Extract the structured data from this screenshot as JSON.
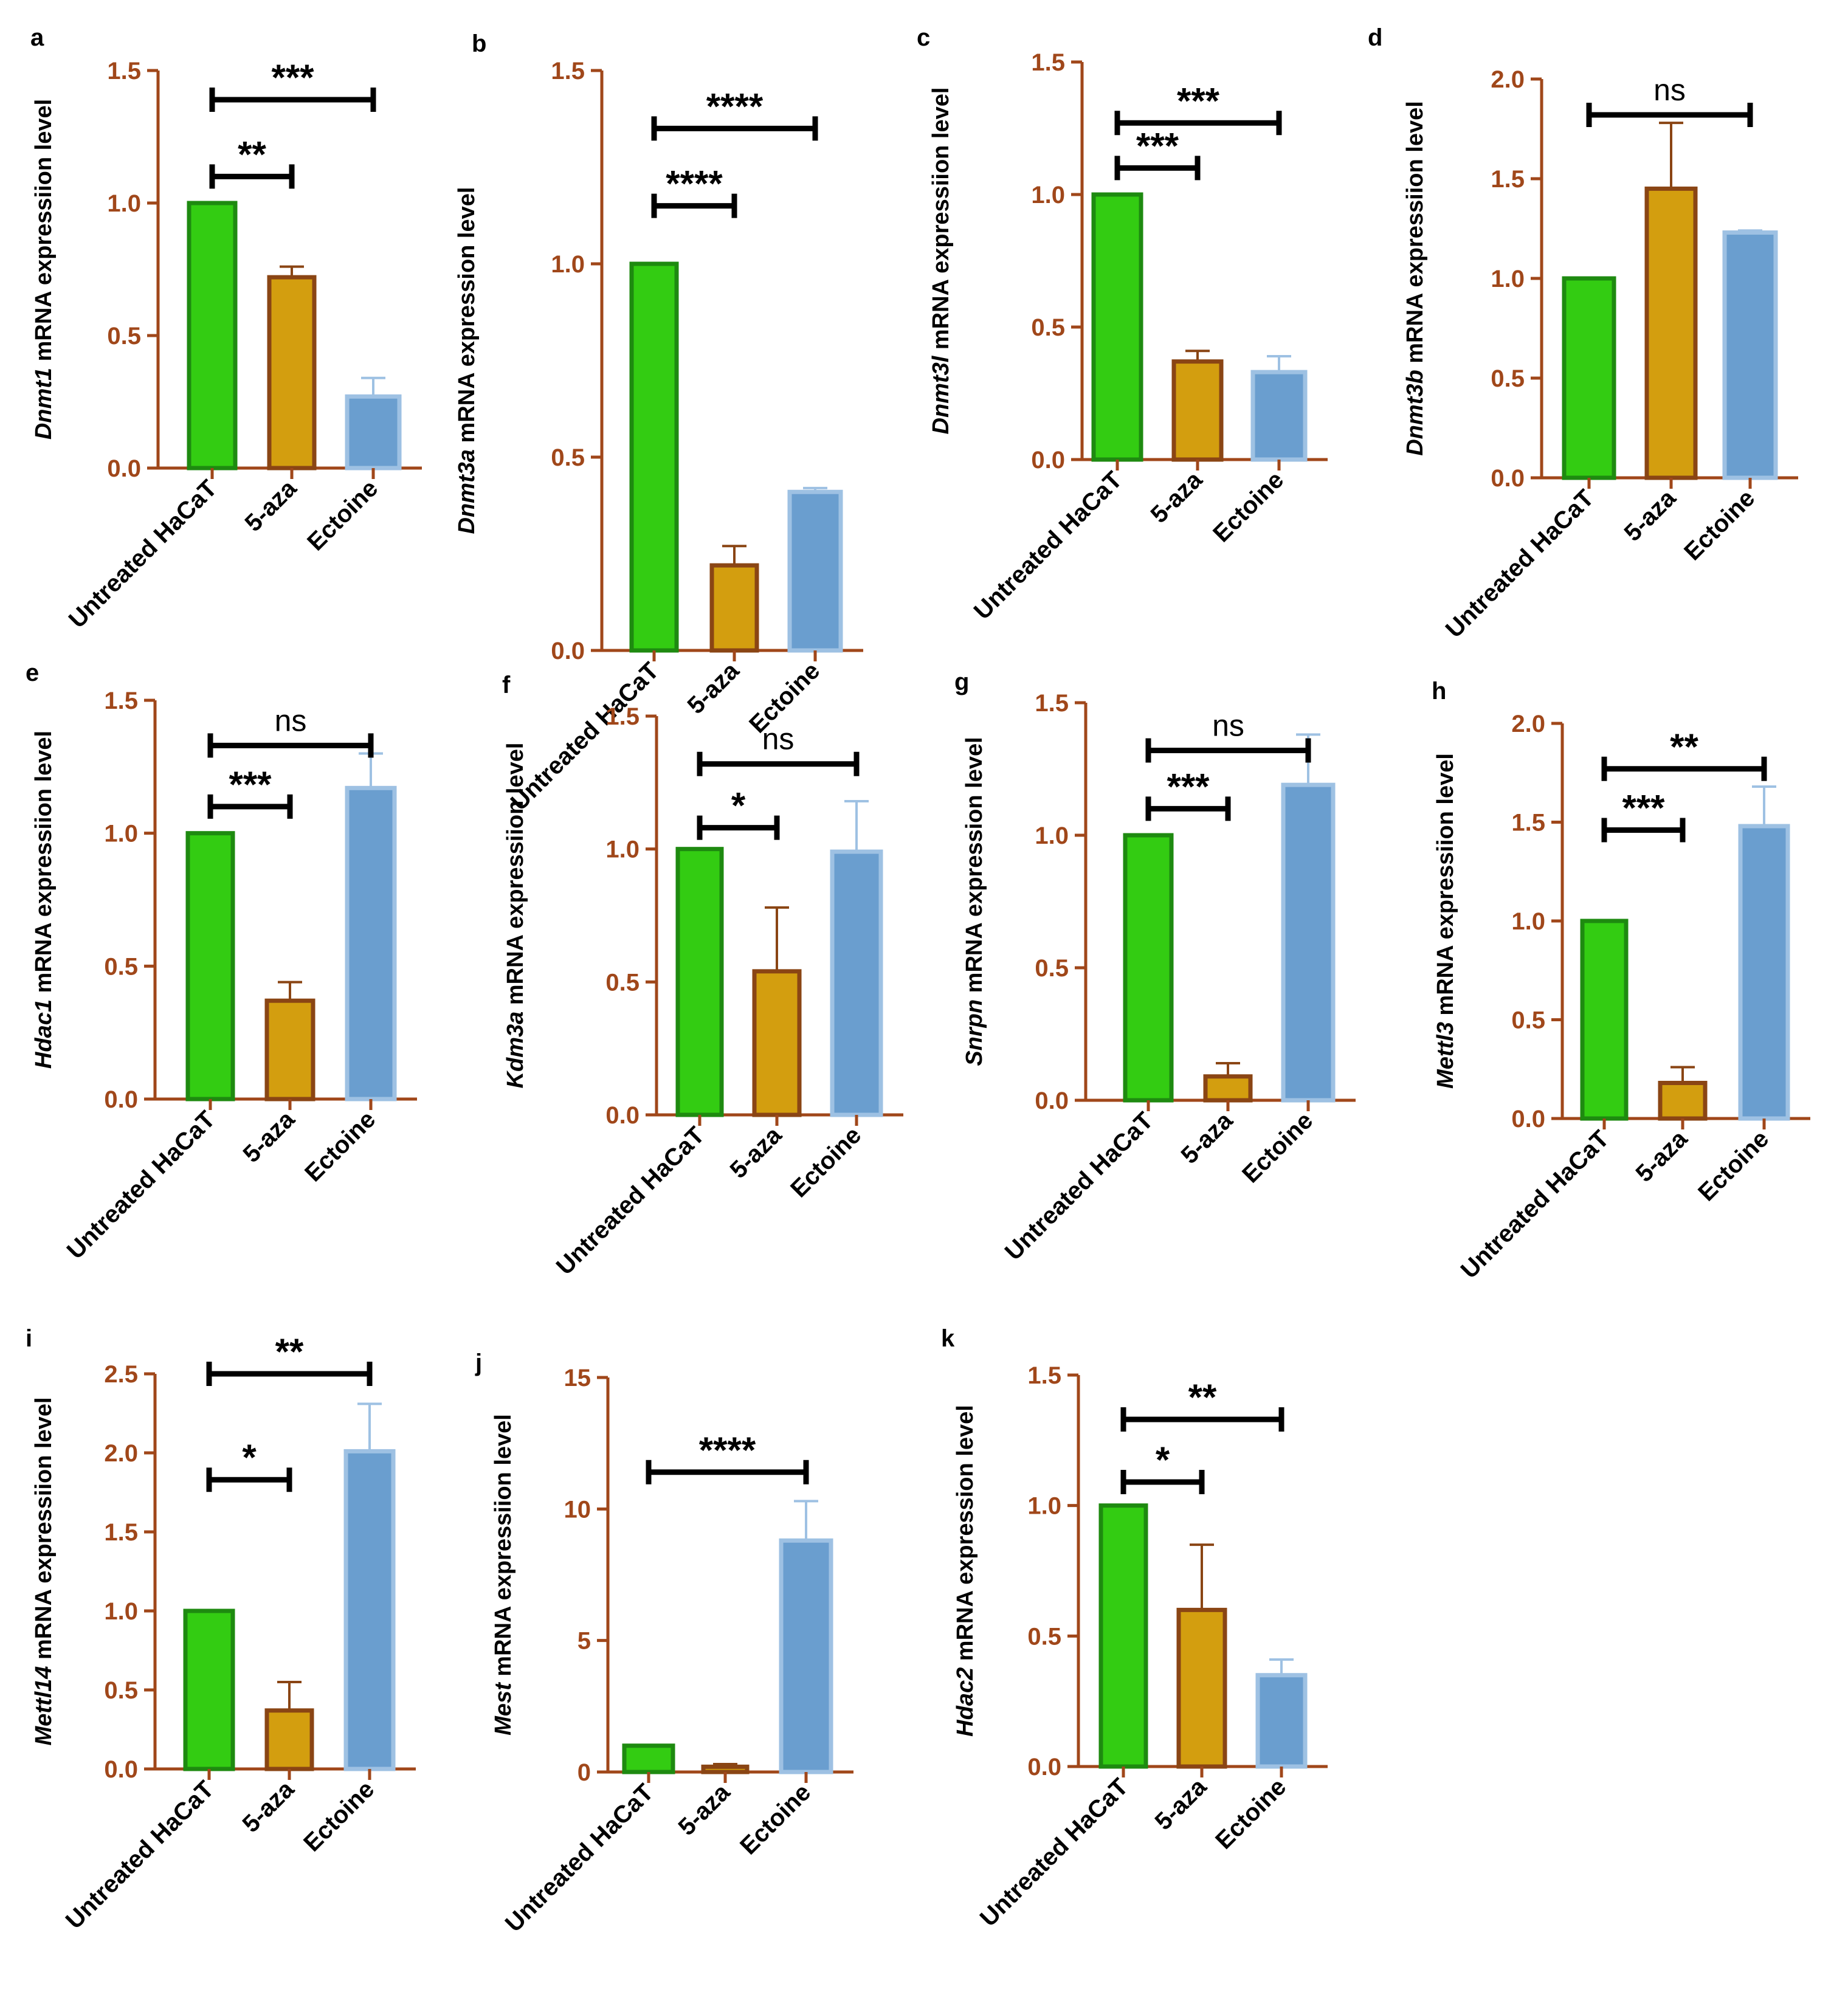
{
  "colors": {
    "axis": "#A0471A",
    "tick_label": "#A0471A",
    "untreated_fill": "#33CC12",
    "untreated_edge": "#1E8A10",
    "aza_fill": "#D39E0F",
    "aza_edge": "#8A4514",
    "ectoine_fill": "#6A9ECF",
    "ectoine_edge": "#9EC1E3",
    "bracket": "#000000"
  },
  "chart_data": [
    {
      "panel": "a",
      "type": "bar",
      "ylabel_gene": "Dnmt1",
      "ylabel_rest": " mRNA expressiion level",
      "categories": [
        "Untreated HaCaT",
        "5-aza",
        "Ectoine"
      ],
      "values": [
        1.0,
        0.72,
        0.27
      ],
      "errors": [
        0,
        0.04,
        0.07
      ],
      "ylim": [
        0,
        1.5
      ],
      "yticks": [
        0.0,
        0.5,
        1.0,
        1.5
      ],
      "significance": [
        {
          "from": 0,
          "to": 2,
          "label": "***",
          "level": 1.39
        },
        {
          "from": 0,
          "to": 1,
          "label": "**",
          "level": 1.1
        }
      ]
    },
    {
      "panel": "b",
      "type": "bar",
      "ylabel_gene": "Dnmt3a",
      "ylabel_rest": " mRNA expression level",
      "categories": [
        "Untreated HaCaT",
        "5-aza",
        "Ectoine"
      ],
      "values": [
        1.0,
        0.22,
        0.41
      ],
      "errors": [
        0,
        0.05,
        0.01
      ],
      "ylim": [
        0,
        1.5
      ],
      "yticks": [
        0.0,
        0.5,
        1.0,
        1.5
      ],
      "significance": [
        {
          "from": 0,
          "to": 2,
          "label": "****",
          "level": 1.35
        },
        {
          "from": 0,
          "to": 1,
          "label": "****",
          "level": 1.15
        }
      ]
    },
    {
      "panel": "c",
      "type": "bar",
      "ylabel_gene": "Dnmt3l",
      "ylabel_rest": " mRNA expressiion level",
      "categories": [
        "Untreated HaCaT",
        "5-aza",
        "Ectoine"
      ],
      "values": [
        1.0,
        0.37,
        0.33
      ],
      "errors": [
        0,
        0.04,
        0.06
      ],
      "ylim": [
        0,
        1.5
      ],
      "yticks": [
        0.0,
        0.5,
        1.0,
        1.5
      ],
      "significance": [
        {
          "from": 0,
          "to": 2,
          "label": "***",
          "level": 1.27
        },
        {
          "from": 0,
          "to": 1,
          "label": "***",
          "level": 1.1
        }
      ]
    },
    {
      "panel": "d",
      "type": "bar",
      "ylabel_gene": "Dnmt3b",
      "ylabel_rest": " mRNA expressiion level",
      "categories": [
        "Untreated HaCaT",
        "5-aza",
        "Ectoine"
      ],
      "values": [
        1.0,
        1.45,
        1.23
      ],
      "errors": [
        0,
        0.33,
        0.01
      ],
      "ylim": [
        0,
        2.0
      ],
      "yticks": [
        0.0,
        0.5,
        1.0,
        1.5,
        2.0
      ],
      "significance": [
        {
          "from": 0,
          "to": 2,
          "label": "ns",
          "level": 1.82
        }
      ]
    },
    {
      "panel": "e",
      "type": "bar",
      "ylabel_gene": "Hdac1",
      "ylabel_rest": " mRNA expressiion level",
      "categories": [
        "Untreated HaCaT",
        "5-aza",
        "Ectoine"
      ],
      "values": [
        1.0,
        0.37,
        1.17
      ],
      "errors": [
        0,
        0.07,
        0.13
      ],
      "ylim": [
        0,
        1.5
      ],
      "yticks": [
        0.0,
        0.5,
        1.0,
        1.5
      ],
      "significance": [
        {
          "from": 0,
          "to": 2,
          "label": "ns",
          "level": 1.33
        },
        {
          "from": 0,
          "to": 1,
          "label": "***",
          "level": 1.1
        }
      ]
    },
    {
      "panel": "f",
      "type": "bar",
      "ylabel_gene": "Kdm3a",
      "ylabel_rest": " mRNA expressiion level",
      "categories": [
        "Untreated HaCaT",
        "5-aza",
        "Ectoine"
      ],
      "values": [
        1.0,
        0.54,
        0.99
      ],
      "errors": [
        0,
        0.24,
        0.19
      ],
      "ylim": [
        0,
        1.5
      ],
      "yticks": [
        0.0,
        0.5,
        1.0,
        1.5
      ],
      "significance": [
        {
          "from": 0,
          "to": 2,
          "label": "ns",
          "level": 1.32
        },
        {
          "from": 0,
          "to": 1,
          "label": "*",
          "level": 1.08
        }
      ]
    },
    {
      "panel": "g",
      "type": "bar",
      "ylabel_gene": "Snrpn",
      "ylabel_rest": " mRNA expression level",
      "categories": [
        "Untreated HaCaT",
        "5-aza",
        "Ectoine"
      ],
      "values": [
        1.0,
        0.09,
        1.19
      ],
      "errors": [
        0,
        0.05,
        0.19
      ],
      "ylim": [
        0,
        1.5
      ],
      "yticks": [
        0.0,
        0.5,
        1.0,
        1.5
      ],
      "significance": [
        {
          "from": 0,
          "to": 2,
          "label": "ns",
          "level": 1.32
        },
        {
          "from": 0,
          "to": 1,
          "label": "***",
          "level": 1.1
        }
      ]
    },
    {
      "panel": "h",
      "type": "bar",
      "ylabel_gene": "Mettl3",
      "ylabel_rest": " mRNA expressiion level",
      "categories": [
        "Untreated HaCaT",
        "5-aza",
        "Ectoine"
      ],
      "values": [
        1.0,
        0.18,
        1.48
      ],
      "errors": [
        0,
        0.08,
        0.2
      ],
      "ylim": [
        0,
        2.0
      ],
      "yticks": [
        0.0,
        0.5,
        1.0,
        1.5,
        2.0
      ],
      "significance": [
        {
          "from": 0,
          "to": 2,
          "label": "**",
          "level": 1.77
        },
        {
          "from": 0,
          "to": 1,
          "label": "***",
          "level": 1.46
        }
      ]
    },
    {
      "panel": "i",
      "type": "bar",
      "ylabel_gene": "Mettl14",
      "ylabel_rest": " mRNA expressiion level",
      "categories": [
        "Untreated HaCaT",
        "5-aza",
        "Ectoine"
      ],
      "values": [
        1.0,
        0.37,
        2.01
      ],
      "errors": [
        0,
        0.18,
        0.3
      ],
      "ylim": [
        0,
        2.5
      ],
      "yticks": [
        0.0,
        0.5,
        1.0,
        1.5,
        2.0,
        2.5
      ],
      "significance": [
        {
          "from": 0,
          "to": 2,
          "label": "**",
          "level": 2.5
        },
        {
          "from": 0,
          "to": 1,
          "label": "*",
          "level": 1.83
        }
      ]
    },
    {
      "panel": "j",
      "type": "bar",
      "ylabel_gene": "Mest",
      "ylabel_rest": " mRNA expressiion level",
      "categories": [
        "Untreated HaCaT",
        "5-aza",
        "Ectoine"
      ],
      "values": [
        1.0,
        0.2,
        8.8
      ],
      "errors": [
        0,
        0.1,
        1.5
      ],
      "ylim": [
        0,
        15
      ],
      "yticks": [
        0,
        5,
        10,
        15
      ],
      "significance": [
        {
          "from": 0,
          "to": 2,
          "label": "****",
          "level": 11.4
        }
      ]
    },
    {
      "panel": "k",
      "type": "bar",
      "ylabel_gene": "Hdac2",
      "ylabel_rest": " mRNA expression level",
      "categories": [
        "Untreated HaCaT",
        "5-aza",
        "Ectoine"
      ],
      "values": [
        1.0,
        0.6,
        0.35
      ],
      "errors": [
        0,
        0.25,
        0.06
      ],
      "ylim": [
        0,
        1.5
      ],
      "yticks": [
        0.0,
        0.5,
        1.0,
        1.5
      ],
      "significance": [
        {
          "from": 0,
          "to": 2,
          "label": "**",
          "level": 1.33
        },
        {
          "from": 0,
          "to": 1,
          "label": "*",
          "level": 1.09
        }
      ]
    }
  ]
}
